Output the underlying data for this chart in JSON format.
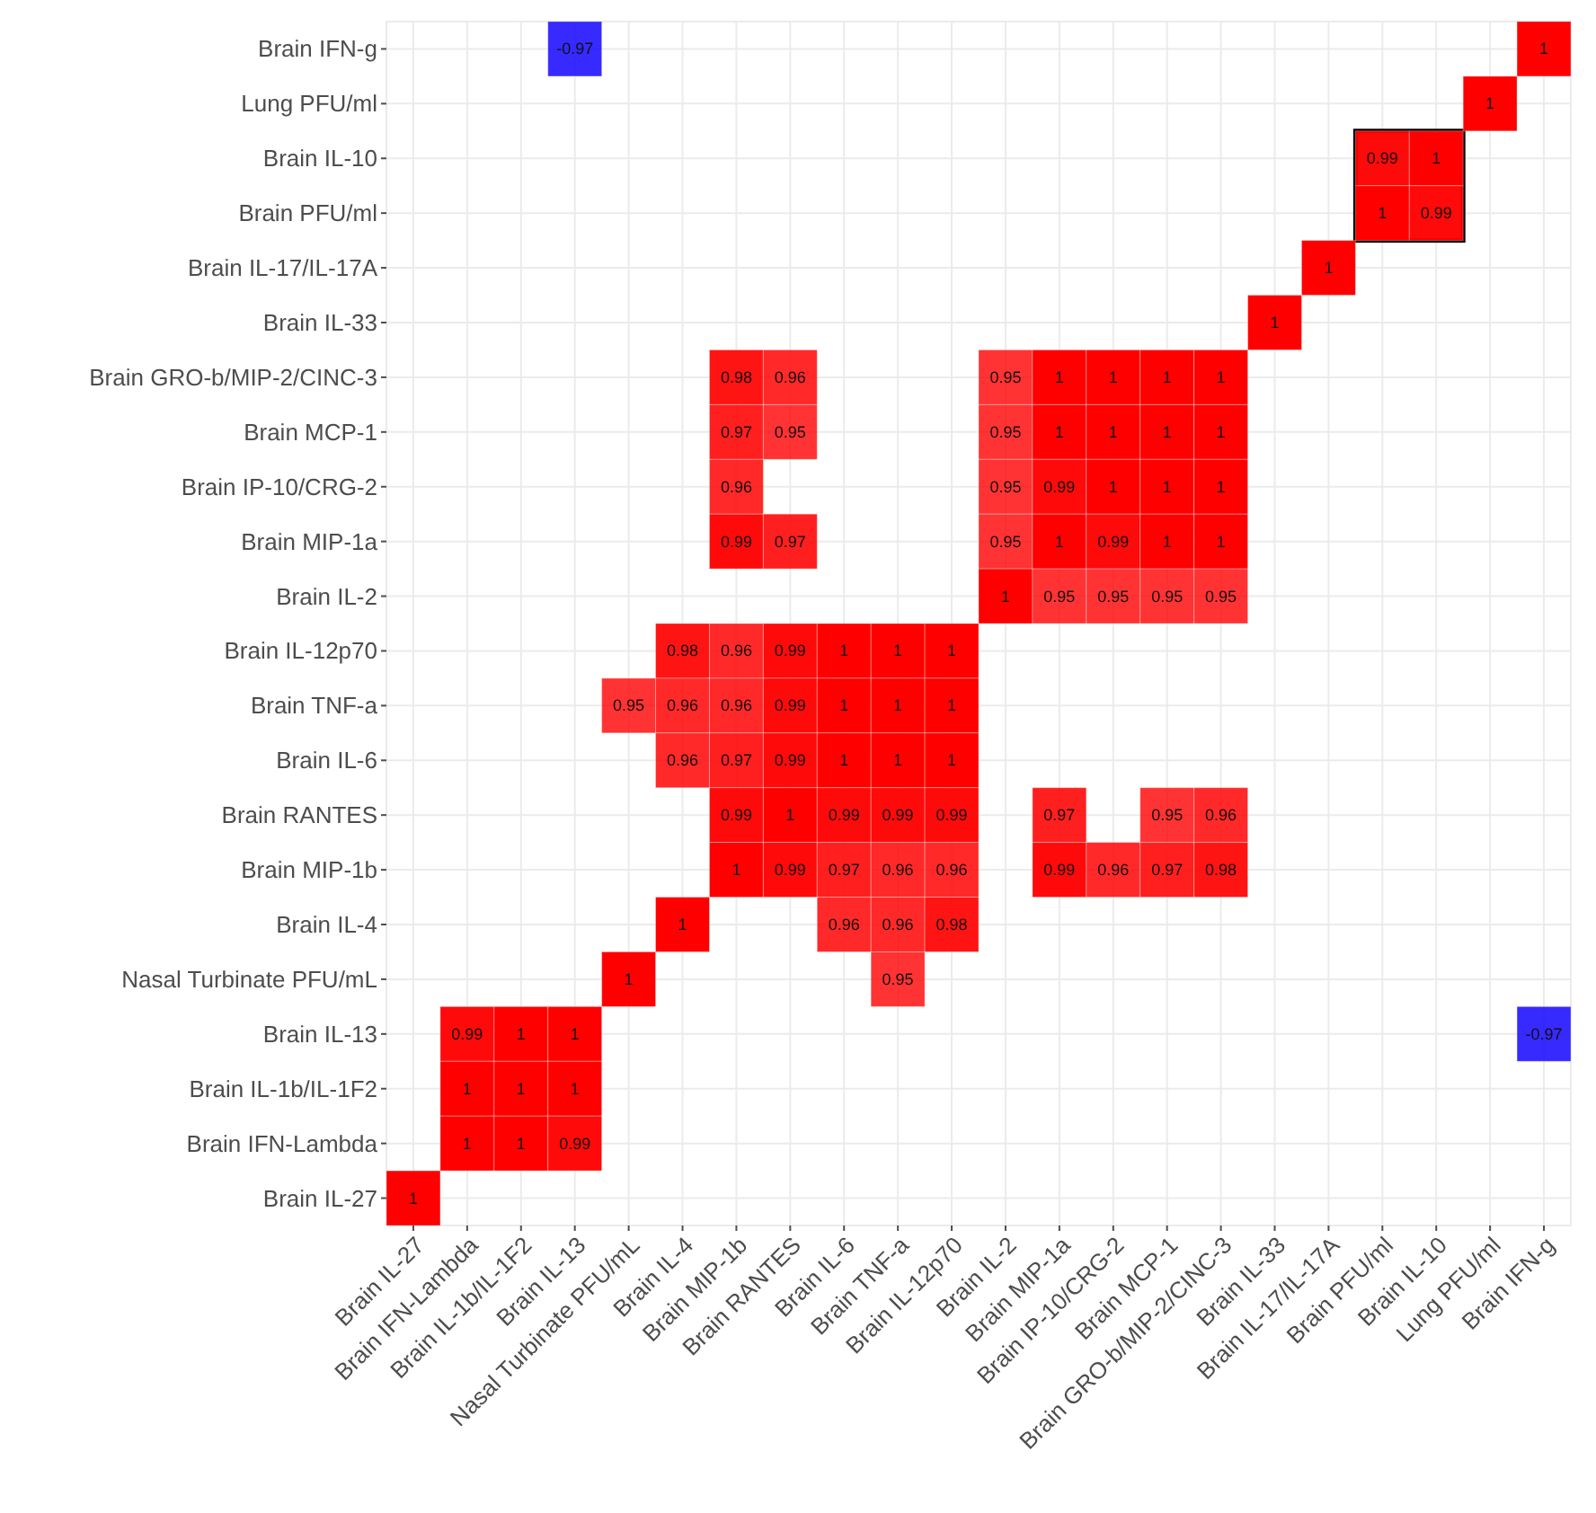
{
  "chart_data": {
    "type": "heatmap",
    "categories": [
      "Brain IL-27",
      "Brain IFN-Lambda",
      "Brain IL-1b/IL-1F2",
      "Brain IL-13",
      "Nasal Turbinate PFU/mL",
      "Brain IL-4",
      "Brain MIP-1b",
      "Brain RANTES",
      "Brain IL-6",
      "Brain TNF-a",
      "Brain IL-12p70",
      "Brain IL-2",
      "Brain MIP-1a",
      "Brain IP-10/CRG-2",
      "Brain MCP-1",
      "Brain GRO-b/MIP-2/CINC-3",
      "Brain IL-33",
      "Brain IL-17/IL-17A",
      "Brain PFU/ml",
      "Brain IL-10",
      "Lung PFU/ml",
      "Brain IFN-g"
    ],
    "y_categories": [
      "Brain IFN-g",
      "Lung PFU/ml",
      "Brain IL-10",
      "Brain PFU/ml",
      "Brain IL-17/IL-17A",
      "Brain IL-33",
      "Brain GRO-b/MIP-2/CINC-3",
      "Brain MCP-1",
      "Brain IP-10/CRG-2",
      "Brain MIP-1a",
      "Brain IL-2",
      "Brain IL-12p70",
      "Brain TNF-a",
      "Brain IL-6",
      "Brain RANTES",
      "Brain MIP-1b",
      "Brain IL-4",
      "Nasal Turbinate PFU/mL",
      "Brain IL-13",
      "Brain IL-1b/IL-1F2",
      "Brain IFN-Lambda",
      "Brain IL-27"
    ],
    "cells": [
      [
        null,
        null,
        null,
        -0.97,
        null,
        null,
        null,
        null,
        null,
        null,
        null,
        null,
        null,
        null,
        null,
        null,
        null,
        null,
        null,
        null,
        null,
        1
      ],
      [
        null,
        null,
        null,
        null,
        null,
        null,
        null,
        null,
        null,
        null,
        null,
        null,
        null,
        null,
        null,
        null,
        null,
        null,
        null,
        null,
        1,
        null
      ],
      [
        null,
        null,
        null,
        null,
        null,
        null,
        null,
        null,
        null,
        null,
        null,
        null,
        null,
        null,
        null,
        null,
        null,
        null,
        0.99,
        1,
        null,
        null
      ],
      [
        null,
        null,
        null,
        null,
        null,
        null,
        null,
        null,
        null,
        null,
        null,
        null,
        null,
        null,
        null,
        null,
        null,
        null,
        1,
        0.99,
        null,
        null
      ],
      [
        null,
        null,
        null,
        null,
        null,
        null,
        null,
        null,
        null,
        null,
        null,
        null,
        null,
        null,
        null,
        null,
        null,
        1,
        null,
        null,
        null,
        null
      ],
      [
        null,
        null,
        null,
        null,
        null,
        null,
        null,
        null,
        null,
        null,
        null,
        null,
        null,
        null,
        null,
        null,
        1,
        null,
        null,
        null,
        null,
        null
      ],
      [
        null,
        null,
        null,
        null,
        null,
        null,
        0.98,
        0.96,
        null,
        null,
        null,
        0.95,
        1,
        1,
        1,
        1,
        null,
        null,
        null,
        null,
        null,
        null
      ],
      [
        null,
        null,
        null,
        null,
        null,
        null,
        0.97,
        0.95,
        null,
        null,
        null,
        0.95,
        1,
        1,
        1,
        1,
        null,
        null,
        null,
        null,
        null,
        null
      ],
      [
        null,
        null,
        null,
        null,
        null,
        null,
        0.96,
        null,
        null,
        null,
        null,
        0.95,
        0.99,
        1,
        1,
        1,
        null,
        null,
        null,
        null,
        null,
        null
      ],
      [
        null,
        null,
        null,
        null,
        null,
        null,
        0.99,
        0.97,
        null,
        null,
        null,
        0.95,
        1,
        0.99,
        1,
        1,
        null,
        null,
        null,
        null,
        null,
        null
      ],
      [
        null,
        null,
        null,
        null,
        null,
        null,
        null,
        null,
        null,
        null,
        null,
        1,
        0.95,
        0.95,
        0.95,
        0.95,
        null,
        null,
        null,
        null,
        null,
        null
      ],
      [
        null,
        null,
        null,
        null,
        null,
        0.98,
        0.96,
        0.99,
        1,
        1,
        1,
        null,
        null,
        null,
        null,
        null,
        null,
        null,
        null,
        null,
        null,
        null
      ],
      [
        null,
        null,
        null,
        null,
        0.95,
        0.96,
        0.96,
        0.99,
        1,
        1,
        1,
        null,
        null,
        null,
        null,
        null,
        null,
        null,
        null,
        null,
        null,
        null
      ],
      [
        null,
        null,
        null,
        null,
        null,
        0.96,
        0.97,
        0.99,
        1,
        1,
        1,
        null,
        null,
        null,
        null,
        null,
        null,
        null,
        null,
        null,
        null,
        null
      ],
      [
        null,
        null,
        null,
        null,
        null,
        null,
        0.99,
        1,
        0.99,
        0.99,
        0.99,
        null,
        0.97,
        null,
        0.95,
        0.96,
        null,
        null,
        null,
        null,
        null,
        null
      ],
      [
        null,
        null,
        null,
        null,
        null,
        null,
        1,
        0.99,
        0.97,
        0.96,
        0.96,
        null,
        0.99,
        0.96,
        0.97,
        0.98,
        null,
        null,
        null,
        null,
        null,
        null
      ],
      [
        null,
        null,
        null,
        null,
        null,
        1,
        null,
        null,
        0.96,
        0.96,
        0.98,
        null,
        null,
        null,
        null,
        null,
        null,
        null,
        null,
        null,
        null,
        null
      ],
      [
        null,
        null,
        null,
        null,
        1,
        null,
        null,
        null,
        null,
        0.95,
        null,
        null,
        null,
        null,
        null,
        null,
        null,
        null,
        null,
        null,
        null,
        null
      ],
      [
        null,
        0.99,
        1,
        1,
        null,
        null,
        null,
        null,
        null,
        null,
        null,
        null,
        null,
        null,
        null,
        null,
        null,
        null,
        null,
        null,
        null,
        -0.97
      ],
      [
        null,
        1,
        1,
        1,
        null,
        null,
        null,
        null,
        null,
        null,
        null,
        null,
        null,
        null,
        null,
        null,
        null,
        null,
        null,
        null,
        null,
        null
      ],
      [
        null,
        1,
        1,
        0.99,
        null,
        null,
        null,
        null,
        null,
        null,
        null,
        null,
        null,
        null,
        null,
        null,
        null,
        null,
        null,
        null,
        null,
        null
      ],
      [
        1,
        null,
        null,
        null,
        null,
        null,
        null,
        null,
        null,
        null,
        null,
        null,
        null,
        null,
        null,
        null,
        null,
        null,
        null,
        null,
        null,
        null
      ]
    ],
    "colors": [
      "#1a0dff",
      "#ff0000"
    ],
    "data_labels": true,
    "grid": true
  }
}
